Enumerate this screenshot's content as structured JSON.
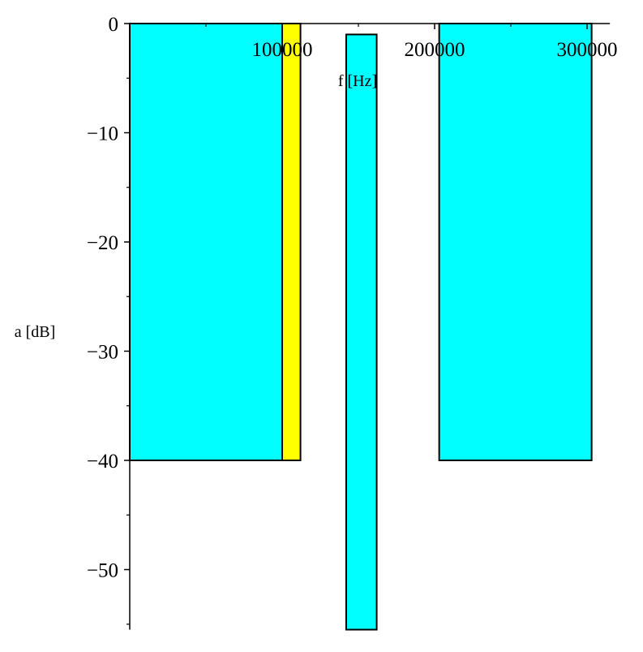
{
  "chart_data": {
    "type": "bar",
    "xlabel": "f [Hz]",
    "ylabel": "a [dB]",
    "xlim": [
      0,
      315000
    ],
    "ylim": [
      -55.5,
      0
    ],
    "x_ticks": [
      {
        "value": 100000,
        "label": "100000"
      },
      {
        "value": 200000,
        "label": "200000"
      },
      {
        "value": 300000,
        "label": "300000"
      }
    ],
    "y_ticks": [
      {
        "value": 0,
        "label": "0"
      },
      {
        "value": -10,
        "label": "−10"
      },
      {
        "value": -20,
        "label": "−20"
      },
      {
        "value": -30,
        "label": "−30"
      },
      {
        "value": -40,
        "label": "−40"
      },
      {
        "value": -50,
        "label": "−50"
      }
    ],
    "y_minor_step": 5,
    "grid": false,
    "bars": [
      {
        "x0": 0,
        "x1": 100000,
        "y_top": 0,
        "y_bottom": -40,
        "color": "#00ffff"
      },
      {
        "x0": 100000,
        "x1": 112000,
        "y_top": 0,
        "y_bottom": -40,
        "color": "#ffff00"
      },
      {
        "x0": 142000,
        "x1": 162000,
        "y_top": -1,
        "y_bottom": -55.5,
        "color": "#00ffff"
      },
      {
        "x0": 203000,
        "x1": 303000,
        "y_top": 0,
        "y_bottom": -40,
        "color": "#00ffff"
      }
    ]
  }
}
